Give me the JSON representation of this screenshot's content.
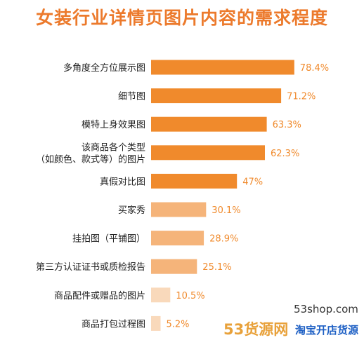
{
  "chart_data": {
    "type": "bar",
    "orientation": "horizontal",
    "title": "女装行业详情页图片内容的需求程度",
    "categories": [
      "多角度全方位展示图",
      "细节图",
      "模特上身效果图",
      "该商品各个类型\n（如颜色、款式等）的图片",
      "真假对比图",
      "买家秀",
      "挂拍图（平铺图）",
      "第三方认证证书或质检报告",
      "商品配件或赠品的图片",
      "商品打包过程图"
    ],
    "values": [
      78.4,
      71.2,
      63.3,
      62.3,
      47,
      30.1,
      28.9,
      25.1,
      10.5,
      5.2
    ],
    "value_labels": [
      "78.4%",
      "71.2%",
      "63.3%",
      "62.3%",
      "47%",
      "30.1%",
      "28.9%",
      "25.1%",
      "10.5%",
      "5.2%"
    ],
    "xlim": [
      0,
      100
    ],
    "grid": false,
    "legend": "none",
    "colors": {
      "dark_bar": "#f08a2c",
      "medium_bar": "#f5b47a",
      "light_bar": "#f9d9bb",
      "value_label": "#f08a2c",
      "category_label": "#222222",
      "title": "#ec7a2c"
    }
  },
  "watermark": {
    "url": "53shop.com",
    "brand": "53货源网",
    "sub": "淘宝开店货源"
  }
}
